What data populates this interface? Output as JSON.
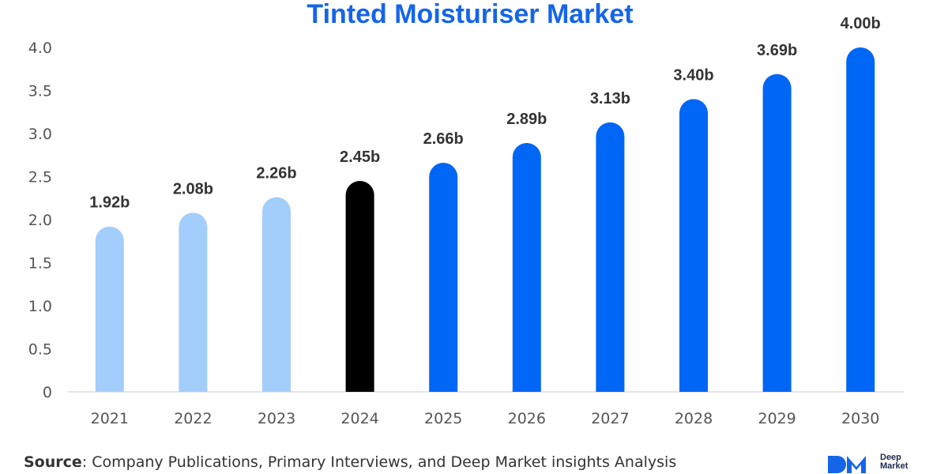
{
  "chart_data": {
    "type": "bar",
    "title": "Tinted Moisturiser Market",
    "categories": [
      "2021",
      "2022",
      "2023",
      "2024",
      "2025",
      "2026",
      "2027",
      "2028",
      "2029",
      "2030"
    ],
    "values": [
      1.92,
      2.08,
      2.26,
      2.45,
      2.66,
      2.89,
      3.13,
      3.4,
      3.69,
      4.0
    ],
    "data_labels": [
      "1.92b",
      "2.08b",
      "2.26b",
      "2.45b",
      "2.66b",
      "2.89b",
      "3.13b",
      "3.40b",
      "3.69b",
      "4.00b"
    ],
    "bar_colors": [
      "#a3cdfb",
      "#a3cdfb",
      "#a3cdfb",
      "#000000",
      "#0066f5",
      "#0066f5",
      "#0066f5",
      "#0066f5",
      "#0066f5",
      "#0066f5"
    ],
    "yticks": [
      "0",
      "0.5",
      "1.0",
      "1.5",
      "2.0",
      "2.5",
      "3.0",
      "3.5",
      "4.0"
    ],
    "ylim": [
      0,
      4
    ],
    "xlabel": "",
    "ylabel": "",
    "grid": false,
    "title_color": "#1565e8"
  },
  "source": {
    "label": "Source",
    "text": ": Company Publications, Primary Interviews, and Deep Market insights Analysis"
  },
  "logo": {
    "line1": "Deep",
    "line2": "Market"
  }
}
